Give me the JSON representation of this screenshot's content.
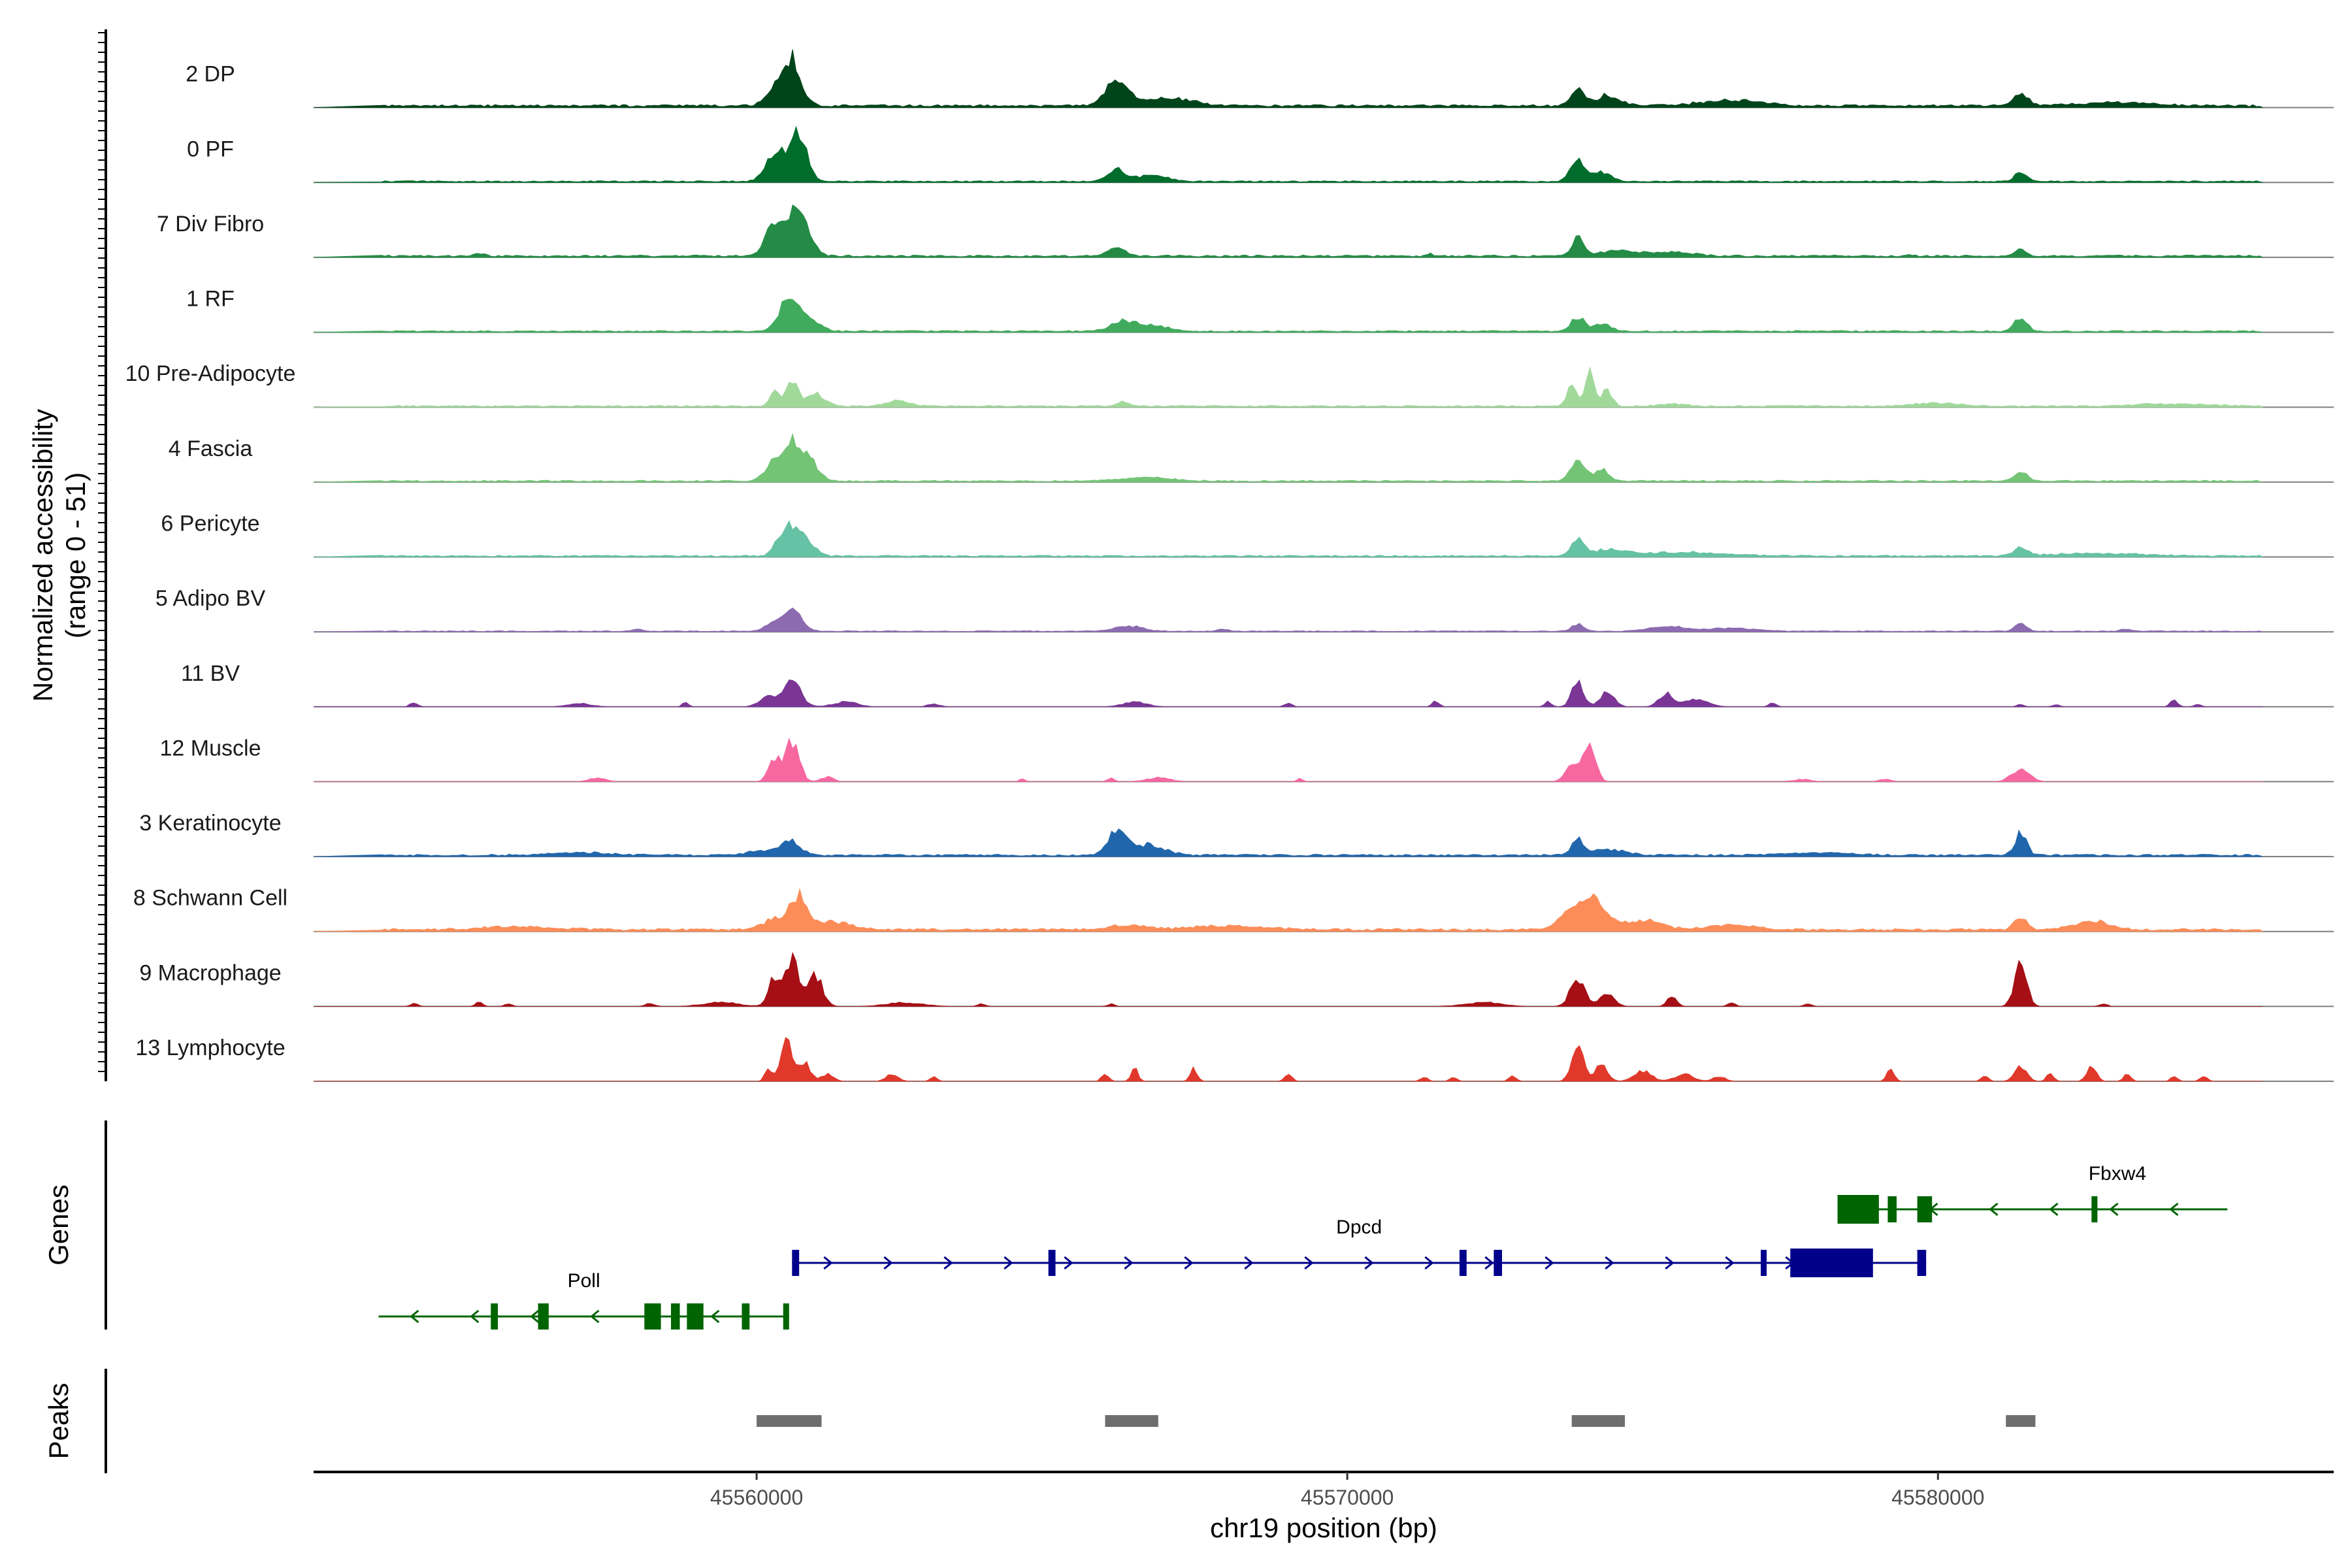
{
  "chart_data": {
    "type": "area",
    "chromosome": "chr19",
    "xlim": [
      45552500,
      45586700
    ],
    "ylim": [
      0,
      51
    ],
    "ylabel_line1": "Normalized accessibility",
    "ylabel_line2": "(range 0 - 51)",
    "xlabel": "chr19 position (bp)",
    "x_ticks": [
      45560000,
      45570000,
      45580000
    ],
    "x_tick_labels": [
      "45560000",
      "45570000",
      "45580000"
    ],
    "genes_panel_label": "Genes",
    "peaks_panel_label": "Peaks",
    "tracks": [
      {
        "name": "2 DP",
        "color": "#00441b",
        "noise": 0.05,
        "peaks": [
          [
            45560600,
            0.95,
            150
          ],
          [
            45560300,
            0.3,
            160
          ],
          [
            45566100,
            0.48,
            200
          ],
          [
            45567000,
            0.15,
            400
          ],
          [
            45573900,
            0.35,
            110
          ],
          [
            45574400,
            0.2,
            200
          ],
          [
            45576500,
            0.12,
            500
          ],
          [
            45581400,
            0.25,
            120
          ],
          [
            45583000,
            0.06,
            700
          ]
        ]
      },
      {
        "name": "0 PF",
        "color": "#006d2c",
        "noise": 0.03,
        "peaks": [
          [
            45560300,
            0.6,
            150
          ],
          [
            45560700,
            0.9,
            150
          ],
          [
            45566100,
            0.25,
            150
          ],
          [
            45566700,
            0.12,
            250
          ],
          [
            45573900,
            0.4,
            120
          ],
          [
            45574300,
            0.2,
            150
          ],
          [
            45581400,
            0.2,
            100
          ]
        ]
      },
      {
        "name": "7 Div Fibro",
        "color": "#238b45",
        "noise": 0.04,
        "peaks": [
          [
            45560300,
            0.6,
            150
          ],
          [
            45560700,
            0.95,
            180
          ],
          [
            45566100,
            0.15,
            150
          ],
          [
            45573900,
            0.35,
            100
          ],
          [
            45574600,
            0.1,
            400
          ],
          [
            45575600,
            0.08,
            300
          ],
          [
            45581400,
            0.15,
            100
          ],
          [
            45555300,
            0.05,
            80
          ],
          [
            45571400,
            0.05,
            60
          ],
          [
            45579500,
            0.05,
            60
          ]
        ]
      },
      {
        "name": "1 RF",
        "color": "#41ab5d",
        "noise": 0.03,
        "peaks": [
          [
            45560500,
            0.5,
            150
          ],
          [
            45560800,
            0.35,
            200
          ],
          [
            45566200,
            0.2,
            200
          ],
          [
            45566700,
            0.12,
            250
          ],
          [
            45573900,
            0.3,
            100
          ],
          [
            45574300,
            0.15,
            150
          ],
          [
            45581400,
            0.3,
            100
          ]
        ]
      },
      {
        "name": "10 Pre-Adipocyte",
        "color": "#a1d99b",
        "noise": 0.03,
        "peaks": [
          [
            45560300,
            0.3,
            80
          ],
          [
            45560600,
            0.5,
            100
          ],
          [
            45561000,
            0.25,
            150
          ],
          [
            45562400,
            0.1,
            200
          ],
          [
            45566200,
            0.08,
            100
          ],
          [
            45573800,
            0.45,
            80
          ],
          [
            45574100,
            0.7,
            80
          ],
          [
            45574400,
            0.35,
            80
          ],
          [
            45575500,
            0.05,
            200
          ],
          [
            45580000,
            0.06,
            400
          ],
          [
            45584000,
            0.05,
            600
          ]
        ]
      },
      {
        "name": "4 Fascia",
        "color": "#74c476",
        "noise": 0.03,
        "peaks": [
          [
            45560300,
            0.4,
            150
          ],
          [
            45560600,
            0.7,
            150
          ],
          [
            45560900,
            0.4,
            150
          ],
          [
            45566600,
            0.08,
            400
          ],
          [
            45573900,
            0.4,
            120
          ],
          [
            45574300,
            0.25,
            120
          ],
          [
            45581400,
            0.2,
            100
          ]
        ]
      },
      {
        "name": "6 Pericyte",
        "color": "#66c2a4",
        "noise": 0.03,
        "peaks": [
          [
            45560500,
            0.55,
            150
          ],
          [
            45560800,
            0.4,
            150
          ],
          [
            45573900,
            0.35,
            100
          ],
          [
            45574400,
            0.12,
            300
          ],
          [
            45575700,
            0.07,
            700
          ],
          [
            45581400,
            0.2,
            100
          ],
          [
            45582700,
            0.05,
            800
          ]
        ]
      },
      {
        "name": "5 Adipo BV",
        "color": "#8c6bb1",
        "noise": 0.02,
        "peaks": [
          [
            45560600,
            0.45,
            150
          ],
          [
            45560300,
            0.15,
            150
          ],
          [
            45566300,
            0.1,
            250
          ],
          [
            45573900,
            0.15,
            100
          ],
          [
            45575400,
            0.1,
            300
          ],
          [
            45576500,
            0.06,
            400
          ],
          [
            45581400,
            0.15,
            100
          ],
          [
            45567900,
            0.04,
            100
          ],
          [
            45583200,
            0.04,
            100
          ],
          [
            45558000,
            0.04,
            80
          ]
        ]
      },
      {
        "name": "11 BV",
        "color": "#7a3595",
        "noise": 0.0,
        "peaks": [
          [
            45554200,
            0.1,
            60
          ],
          [
            45557000,
            0.07,
            200
          ],
          [
            45558800,
            0.1,
            50
          ],
          [
            45560200,
            0.2,
            150
          ],
          [
            45560600,
            0.5,
            150
          ],
          [
            45561500,
            0.1,
            200
          ],
          [
            45563000,
            0.06,
            100
          ],
          [
            45566400,
            0.1,
            200
          ],
          [
            45569000,
            0.08,
            60
          ],
          [
            45571500,
            0.12,
            60
          ],
          [
            45573400,
            0.1,
            60
          ],
          [
            45573900,
            0.5,
            100
          ],
          [
            45574400,
            0.3,
            120
          ],
          [
            45575400,
            0.25,
            120
          ],
          [
            45575900,
            0.15,
            200
          ],
          [
            45577200,
            0.08,
            60
          ],
          [
            45581400,
            0.05,
            60
          ],
          [
            45582000,
            0.05,
            60
          ],
          [
            45584000,
            0.15,
            60
          ],
          [
            45584400,
            0.05,
            60
          ]
        ]
      },
      {
        "name": "12 Muscle",
        "color": "#f768a1",
        "noise": 0.0,
        "peaks": [
          [
            45557300,
            0.07,
            150
          ],
          [
            45560300,
            0.45,
            100
          ],
          [
            45560600,
            0.8,
            120
          ],
          [
            45561200,
            0.1,
            100
          ],
          [
            45564500,
            0.06,
            50
          ],
          [
            45566000,
            0.08,
            60
          ],
          [
            45566800,
            0.08,
            200
          ],
          [
            45569200,
            0.06,
            50
          ],
          [
            45573800,
            0.3,
            120
          ],
          [
            45574100,
            0.8,
            100
          ],
          [
            45577700,
            0.05,
            150
          ],
          [
            45579100,
            0.05,
            100
          ],
          [
            45581400,
            0.25,
            150
          ]
        ]
      },
      {
        "name": "3 Keratinocyte",
        "color": "#2166ac",
        "noise": 0.04,
        "peaks": [
          [
            45560600,
            0.25,
            150
          ],
          [
            45560200,
            0.1,
            300
          ],
          [
            45566100,
            0.5,
            150
          ],
          [
            45566600,
            0.2,
            300
          ],
          [
            45573900,
            0.3,
            100
          ],
          [
            45574400,
            0.12,
            300
          ],
          [
            45581400,
            0.45,
            100
          ],
          [
            45557000,
            0.05,
            500
          ],
          [
            45578000,
            0.05,
            500
          ]
        ]
      },
      {
        "name": "8 Schwann Cell",
        "color": "#fc8d59",
        "noise": 0.05,
        "peaks": [
          [
            45560300,
            0.2,
            200
          ],
          [
            45560700,
            0.65,
            150
          ],
          [
            45561300,
            0.15,
            300
          ],
          [
            45566300,
            0.1,
            300
          ],
          [
            45568000,
            0.08,
            600
          ],
          [
            45573800,
            0.4,
            200
          ],
          [
            45574200,
            0.6,
            200
          ],
          [
            45575000,
            0.2,
            300
          ],
          [
            45576500,
            0.1,
            400
          ],
          [
            45581400,
            0.25,
            100
          ],
          [
            45582600,
            0.18,
            300
          ],
          [
            45556000,
            0.06,
            600
          ]
        ]
      },
      {
        "name": "9 Macrophage",
        "color": "#a50f15",
        "noise": 0.0,
        "peaks": [
          [
            45554200,
            0.06,
            60
          ],
          [
            45555300,
            0.08,
            60
          ],
          [
            45555800,
            0.05,
            60
          ],
          [
            45558200,
            0.06,
            80
          ],
          [
            45559400,
            0.08,
            300
          ],
          [
            45560300,
            0.55,
            100
          ],
          [
            45560600,
            0.95,
            120
          ],
          [
            45561000,
            0.6,
            120
          ],
          [
            45562500,
            0.08,
            300
          ],
          [
            45563800,
            0.06,
            60
          ],
          [
            45566000,
            0.05,
            60
          ],
          [
            45572300,
            0.08,
            300
          ],
          [
            45573900,
            0.6,
            120
          ],
          [
            45574400,
            0.25,
            120
          ],
          [
            45575500,
            0.2,
            80
          ],
          [
            45576500,
            0.08,
            60
          ],
          [
            45577800,
            0.06,
            60
          ],
          [
            45581400,
            0.95,
            100
          ],
          [
            45582800,
            0.06,
            60
          ]
        ]
      },
      {
        "name": "13 Lymphocyte",
        "color": "#e0392b",
        "noise": 0.0,
        "peaks": [
          [
            45560200,
            0.25,
            60
          ],
          [
            45560500,
            0.85,
            100
          ],
          [
            45560800,
            0.4,
            100
          ],
          [
            45561200,
            0.15,
            100
          ],
          [
            45562300,
            0.15,
            100
          ],
          [
            45563000,
            0.1,
            60
          ],
          [
            45565900,
            0.15,
            60
          ],
          [
            45566400,
            0.25,
            60
          ],
          [
            45567400,
            0.25,
            60
          ],
          [
            45569000,
            0.15,
            60
          ],
          [
            45571300,
            0.08,
            60
          ],
          [
            45571800,
            0.08,
            60
          ],
          [
            45572800,
            0.12,
            60
          ],
          [
            45573900,
            0.7,
            100
          ],
          [
            45574300,
            0.35,
            100
          ],
          [
            45575000,
            0.2,
            150
          ],
          [
            45575700,
            0.15,
            150
          ],
          [
            45576300,
            0.1,
            100
          ],
          [
            45579200,
            0.25,
            60
          ],
          [
            45580800,
            0.12,
            60
          ],
          [
            45581400,
            0.3,
            100
          ],
          [
            45581900,
            0.15,
            60
          ],
          [
            45582600,
            0.3,
            80
          ],
          [
            45583200,
            0.15,
            60
          ],
          [
            45584000,
            0.1,
            60
          ],
          [
            45584500,
            0.1,
            60
          ]
        ]
      }
    ],
    "genes": [
      {
        "name": "Poll",
        "strand": "-",
        "color": "#006400",
        "start": 45553600,
        "end": 45560550,
        "exons": [
          [
            45555500,
            45555620
          ],
          [
            45556300,
            45556480
          ],
          [
            45558100,
            45558380
          ],
          [
            45558550,
            45558700
          ],
          [
            45558820,
            45559100
          ],
          [
            45559750,
            45559880
          ],
          [
            45560450,
            45560550
          ]
        ]
      },
      {
        "name": "Dpcd",
        "strand": "+",
        "color": "#00008b",
        "start": 45560600,
        "end": 45579800,
        "exons": [
          [
            45560600,
            45560720
          ],
          [
            45564940,
            45565060
          ],
          [
            45571900,
            45572020
          ],
          [
            45572480,
            45572620
          ],
          [
            45577000,
            45577100
          ],
          [
            45577500,
            45578900
          ],
          [
            45579650,
            45579800
          ]
        ]
      },
      {
        "name": "Fbxw4",
        "strand": "-",
        "color": "#006400",
        "start": 45578300,
        "end": 45584900,
        "exons": [
          [
            45578300,
            45579000
          ],
          [
            45579150,
            45579300
          ],
          [
            45579650,
            45579900
          ],
          [
            45582600,
            45582700
          ]
        ]
      }
    ],
    "peaks": [
      [
        45560000,
        45561100
      ],
      [
        45565900,
        45566800
      ],
      [
        45573800,
        45574700
      ],
      [
        45581150,
        45581650
      ]
    ]
  }
}
